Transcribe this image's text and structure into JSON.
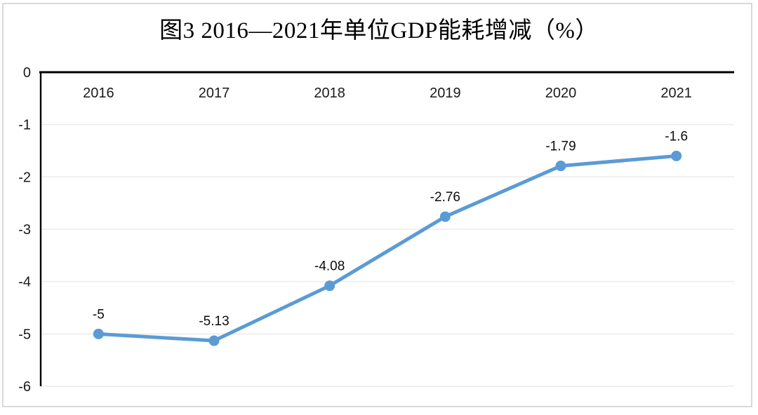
{
  "chart_data": {
    "type": "line",
    "title": "图3 2016—2021年单位GDP能耗增减（%）",
    "categories": [
      "2016",
      "2017",
      "2018",
      "2019",
      "2020",
      "2021"
    ],
    "values": [
      -5,
      -5.13,
      -4.08,
      -2.76,
      -1.79,
      -1.6
    ],
    "point_labels": [
      "-5",
      "-5.13",
      "-4.08",
      "-2.76",
      "-1.79",
      "-1.6"
    ],
    "yticks": [
      0,
      -1,
      -2,
      -3,
      -4,
      -5,
      -6
    ],
    "ytick_labels": [
      "0",
      "-1",
      "-2",
      "-3",
      "-4",
      "-5",
      "-6"
    ],
    "ylim": [
      -6,
      0
    ],
    "xlabel": "",
    "ylabel": "",
    "grid": true,
    "legend": "none",
    "x_labels_position": "inside-top",
    "line_color": "#5B9BD5",
    "marker_color": "#5B9BD5",
    "axis_color": "#000000",
    "gridline_color": "#ececec",
    "frame_color": "#d9d9d9"
  }
}
